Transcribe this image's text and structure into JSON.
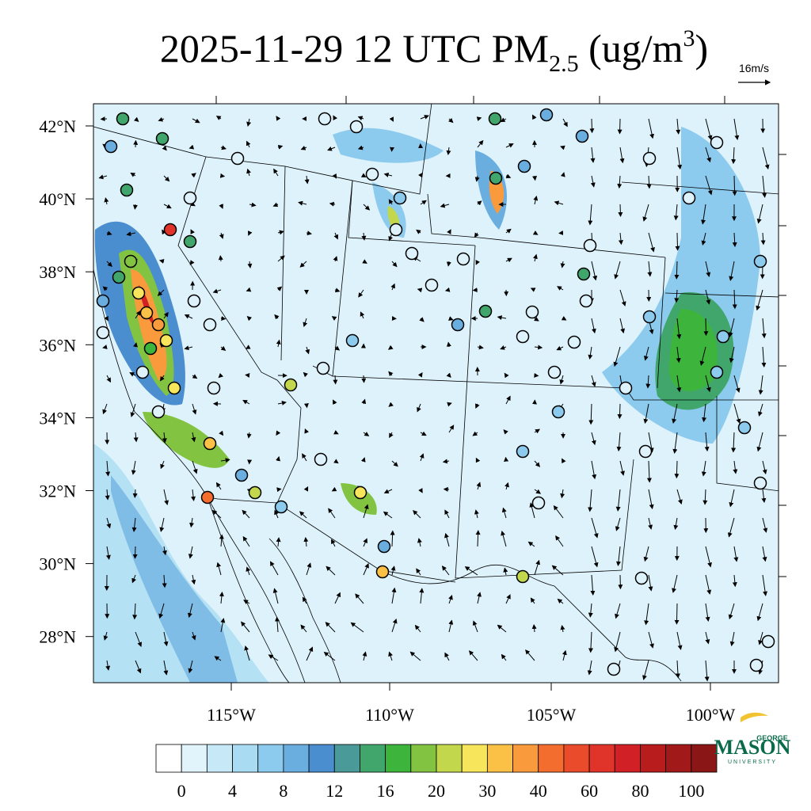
{
  "title": {
    "main": "2025-11-29 12 UTC PM",
    "sub": "2.5",
    "unit": " (ug/m",
    "sup": "3",
    "close": ")"
  },
  "wind_reference": "16m/s",
  "lat_labels": [
    "42°N",
    "40°N",
    "38°N",
    "36°N",
    "34°N",
    "32°N",
    "30°N",
    "28°N"
  ],
  "lon_labels": [
    "115°W",
    "110°W",
    "105°W",
    "100°W"
  ],
  "colorbar": {
    "colors": [
      "#ffffff",
      "#e1f3fb",
      "#c7e9f7",
      "#a9dcf3",
      "#8dcbee",
      "#6aaee0",
      "#4b8ecf",
      "#4a9a9a",
      "#41a66c",
      "#3db53c",
      "#82c442",
      "#c2d74c",
      "#f7e65b",
      "#fbc046",
      "#f99b3d",
      "#f36d2e",
      "#ea4c2b",
      "#e0332a",
      "#d22027",
      "#b81c1d",
      "#a11919",
      "#8b1616"
    ],
    "labels": [
      0,
      4,
      8,
      12,
      16,
      20,
      30,
      40,
      60,
      80,
      100
    ]
  },
  "logo": {
    "top": "GEORGE",
    "middle": "MASON",
    "bottom": "UNIVERSITY"
  }
}
